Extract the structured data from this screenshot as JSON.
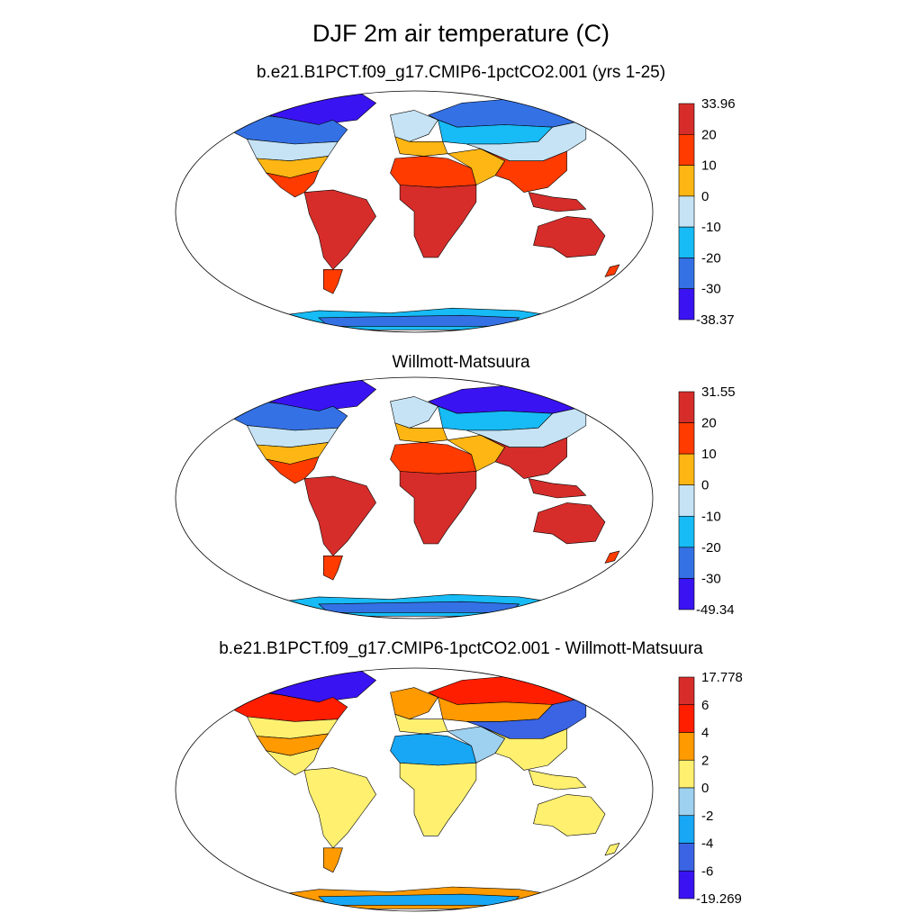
{
  "title": "DJF 2m air temperature (C)",
  "chart_data": [
    {
      "type": "heatmap",
      "title": "b.e21.B1PCT.f09_g17.CMIP6-1pctCO2.001 (yrs 1-25)",
      "colorbar": {
        "labels": [
          "33.96",
          "20",
          "10",
          "0",
          "-10",
          "-20",
          "-30",
          "-38.37"
        ],
        "levels": [
          33.96,
          20,
          10,
          0,
          -10,
          -20,
          -30,
          -38.37
        ],
        "colors": [
          "#d62d2a",
          "#ff3b00",
          "#fdb614",
          "#c5e3f5",
          "#17bbf5",
          "#3471e5",
          "#3a13f2"
        ]
      },
      "regions": [
        {
          "name": "Arctic / Greenland",
          "band": 6
        },
        {
          "name": "Canada",
          "band": 5
        },
        {
          "name": "Central North America",
          "band": 3
        },
        {
          "name": "Southern North America",
          "band": 2
        },
        {
          "name": "Central America / Florida",
          "band": 1
        },
        {
          "name": "South America",
          "band": 0
        },
        {
          "name": "Patagonia",
          "band": 1
        },
        {
          "name": "Northern Europe",
          "band": 3
        },
        {
          "name": "Southern Europe",
          "band": 2
        },
        {
          "name": "Sahara",
          "band": 1
        },
        {
          "name": "Sub-Saharan Africa",
          "band": 0
        },
        {
          "name": "Middle East",
          "band": 2
        },
        {
          "name": "Northern Siberia",
          "band": 5
        },
        {
          "name": "Central Asia",
          "band": 4
        },
        {
          "name": "Tibet / East Asia",
          "band": 3
        },
        {
          "name": "South & SE Asia",
          "band": 1
        },
        {
          "name": "Maritime Continent",
          "band": 0
        },
        {
          "name": "Australia",
          "band": 0
        },
        {
          "name": "New Zealand",
          "band": 1
        },
        {
          "name": "Antarctica coast",
          "band": 4
        },
        {
          "name": "Antarctica interior",
          "band": 5
        }
      ]
    },
    {
      "type": "heatmap",
      "title": "Willmott-Matsuura",
      "colorbar": {
        "labels": [
          "31.55",
          "20",
          "10",
          "0",
          "-10",
          "-20",
          "-30",
          "-49.34"
        ],
        "levels": [
          31.55,
          20,
          10,
          0,
          -10,
          -20,
          -30,
          -49.34
        ],
        "colors": [
          "#d62d2a",
          "#ff3b00",
          "#fdb614",
          "#c5e3f5",
          "#17bbf5",
          "#3471e5",
          "#3a13f2"
        ]
      },
      "regions": [
        {
          "name": "Arctic / Greenland",
          "band": 6
        },
        {
          "name": "Canada",
          "band": 5
        },
        {
          "name": "Central North America",
          "band": 3
        },
        {
          "name": "Southern North America",
          "band": 2
        },
        {
          "name": "Central America / Florida",
          "band": 1
        },
        {
          "name": "South America",
          "band": 0
        },
        {
          "name": "Patagonia",
          "band": 1
        },
        {
          "name": "Northern Europe",
          "band": 3
        },
        {
          "name": "Southern Europe",
          "band": 2
        },
        {
          "name": "Sahara",
          "band": 1
        },
        {
          "name": "Sub-Saharan Africa",
          "band": 0
        },
        {
          "name": "Middle East",
          "band": 2
        },
        {
          "name": "Northern Siberia",
          "band": 6
        },
        {
          "name": "Central Asia",
          "band": 4
        },
        {
          "name": "Tibet / East Asia",
          "band": 3
        },
        {
          "name": "South & SE Asia",
          "band": 0
        },
        {
          "name": "Maritime Continent",
          "band": 0
        },
        {
          "name": "Australia",
          "band": 0
        },
        {
          "name": "New Zealand",
          "band": 1
        },
        {
          "name": "Antarctica coast",
          "band": 4
        },
        {
          "name": "Antarctica interior",
          "band": 5
        }
      ]
    },
    {
      "type": "heatmap",
      "title": "b.e21.B1PCT.f09_g17.CMIP6-1pctCO2.001 - Willmott-Matsuura",
      "colorbar": {
        "labels": [
          "17.778",
          "6",
          "4",
          "2",
          "0",
          "-2",
          "-4",
          "-6",
          "-19.269"
        ],
        "levels": [
          17.778,
          6,
          4,
          2,
          0,
          -2,
          -4,
          -6,
          -19.269
        ],
        "colors": [
          "#d62d2a",
          "#ff1e00",
          "#ff9a00",
          "#fff070",
          "#9ed0ef",
          "#17a7f5",
          "#3a64e3",
          "#3a13f2"
        ]
      },
      "regions": [
        {
          "name": "Arctic / Greenland",
          "band": 7
        },
        {
          "name": "Canada",
          "band": 1
        },
        {
          "name": "Central North America",
          "band": 3
        },
        {
          "name": "Southern North America",
          "band": 2
        },
        {
          "name": "Central America / Florida",
          "band": 3
        },
        {
          "name": "South America",
          "band": 3
        },
        {
          "name": "Patagonia",
          "band": 2
        },
        {
          "name": "Northern Europe",
          "band": 2
        },
        {
          "name": "Southern Europe",
          "band": 3
        },
        {
          "name": "Sahara",
          "band": 5
        },
        {
          "name": "Sub-Saharan Africa",
          "band": 3
        },
        {
          "name": "Middle East",
          "band": 4
        },
        {
          "name": "Northern Siberia",
          "band": 1
        },
        {
          "name": "Central Asia",
          "band": 2
        },
        {
          "name": "Tibet / East Asia",
          "band": 6
        },
        {
          "name": "South & SE Asia",
          "band": 3
        },
        {
          "name": "Maritime Continent",
          "band": 3
        },
        {
          "name": "Australia",
          "band": 3
        },
        {
          "name": "New Zealand",
          "band": 3
        },
        {
          "name": "Antarctica coast",
          "band": 2
        },
        {
          "name": "Antarctica interior",
          "band": 5
        }
      ]
    }
  ]
}
